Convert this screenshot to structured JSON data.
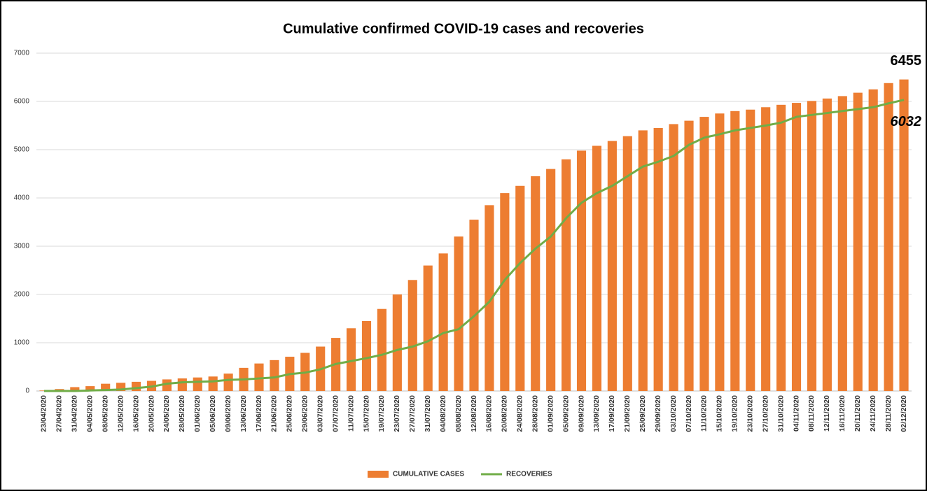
{
  "chart_data": {
    "type": "bar",
    "title": "Cumulative confirmed COVID-19 cases and recoveries",
    "categories": [
      "23/04/2020",
      "27/04/2020",
      "31/04/2020",
      "04/05/2020",
      "08/05/2020",
      "12/05/2020",
      "16/05/2020",
      "20/05/2020",
      "24/05/2020",
      "28/05/2020",
      "01/06/2020",
      "05/06/2020",
      "09/06/2020",
      "13/06/2020",
      "17/06/2020",
      "21/06/2020",
      "25/06/2020",
      "29/06/2020",
      "03/07/2020",
      "07/07/2020",
      "11/07/2020",
      "15/07/2020",
      "19/07/2020",
      "23/07/2020",
      "27/07/2020",
      "31/07/2020",
      "04/08/2020",
      "08/08/2020",
      "12/08/2020",
      "16/08/2020",
      "20/08/2020",
      "24/08/2020",
      "28/08/2020",
      "01/09/2020",
      "05/09/2020",
      "09/09/2020",
      "13/09/2020",
      "17/09/2020",
      "21/09/2020",
      "25/09/2020",
      "29/09/2020",
      "03/10/2020",
      "07/10/2020",
      "11/10/2020",
      "15/10/2020",
      "19/10/2020",
      "23/10/2020",
      "27/10/2020",
      "31/10/2020",
      "04/11/2020",
      "08/11/2020",
      "12/11/2020",
      "16/11/2020",
      "20/11/2020",
      "24/11/2020",
      "28/11/2020",
      "02/12/2020"
    ],
    "series": [
      {
        "name": "CUMULATIVE CASES",
        "type": "bar",
        "color": "#ed7d31",
        "values": [
          10,
          40,
          80,
          100,
          150,
          170,
          190,
          210,
          240,
          260,
          280,
          300,
          360,
          480,
          570,
          640,
          710,
          790,
          920,
          1100,
          1300,
          1450,
          1700,
          2000,
          2300,
          2600,
          2850,
          3200,
          3550,
          3850,
          4100,
          4250,
          4450,
          4600,
          4800,
          4980,
          5080,
          5180,
          5280,
          5400,
          5450,
          5530,
          5600,
          5680,
          5750,
          5800,
          5830,
          5880,
          5930,
          5970,
          6010,
          6060,
          6110,
          6180,
          6250,
          6380,
          6455
        ]
      },
      {
        "name": "RECOVERIES",
        "type": "line",
        "color": "#70ad47",
        "values": [
          0,
          0,
          0,
          10,
          20,
          30,
          60,
          90,
          150,
          180,
          190,
          200,
          230,
          240,
          260,
          280,
          350,
          380,
          450,
          560,
          620,
          680,
          750,
          850,
          920,
          1030,
          1200,
          1280,
          1550,
          1850,
          2300,
          2650,
          2950,
          3200,
          3580,
          3900,
          4100,
          4250,
          4450,
          4650,
          4750,
          4870,
          5100,
          5250,
          5320,
          5400,
          5450,
          5500,
          5560,
          5680,
          5720,
          5760,
          5800,
          5840,
          5880,
          5960,
          6032
        ]
      }
    ],
    "ylim": [
      0,
      7000
    ],
    "yticks": [
      0,
      1000,
      2000,
      3000,
      4000,
      5000,
      6000,
      7000
    ],
    "grid": true,
    "legend": "bottom"
  }
}
